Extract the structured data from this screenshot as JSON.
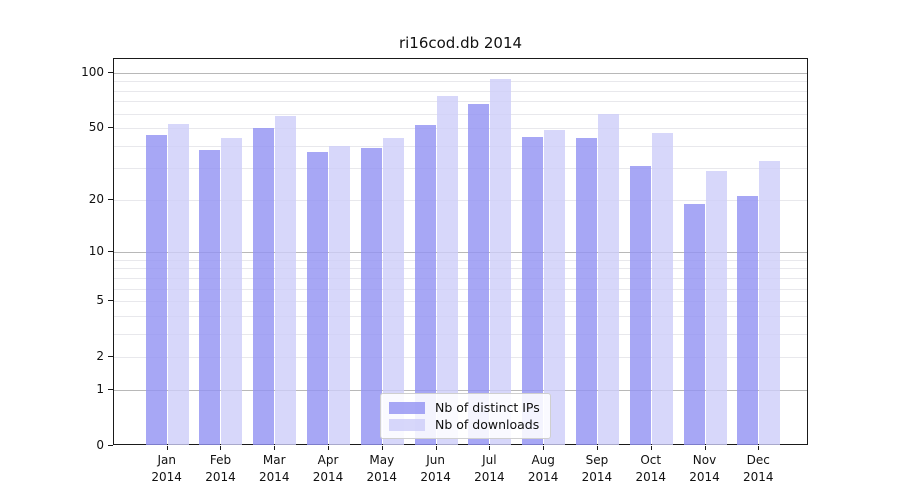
{
  "title": "ri16cod.db 2014",
  "chart_data": {
    "type": "bar",
    "title": "ri16cod.db 2014",
    "categories": [
      "Jan",
      "Feb",
      "Mar",
      "Apr",
      "May",
      "Jun",
      "Jul",
      "Aug",
      "Sep",
      "Oct",
      "Nov",
      "Dec"
    ],
    "x_year_label": "2014",
    "series": [
      {
        "name": "Nb of distinct IPs",
        "color": "rgba(148,148,243,0.82)",
        "values": [
          46,
          38,
          50,
          37,
          39,
          52,
          68,
          45,
          44,
          31,
          19,
          21
        ]
      },
      {
        "name": "Nb of downloads",
        "color": "rgba(205,205,249,0.80)",
        "values": [
          53,
          44,
          58,
          40,
          44,
          75,
          93,
          49,
          60,
          47,
          29,
          33
        ]
      }
    ],
    "yscale": "log1p",
    "yticks": [
      0,
      1,
      2,
      5,
      10,
      20,
      50,
      100
    ],
    "major_gridlines": [
      1,
      10,
      100
    ],
    "minor_gridlines": [
      2,
      3,
      4,
      5,
      6,
      7,
      8,
      9,
      20,
      30,
      40,
      50,
      60,
      70,
      80,
      90
    ],
    "ylim": [
      0,
      119
    ],
    "xlabel": "",
    "ylabel": "",
    "legend_position": "lower center",
    "grid": "horizontal",
    "colors": {
      "bar_ips": "rgba(148,148,243,0.82)",
      "bar_downloads": "rgba(205,205,249,0.80)",
      "grid_major": "#b8b8b8",
      "grid_minor": "#e8e8ec",
      "spine": "#1a1a1a",
      "text": "#111111",
      "background": "#ffffff"
    }
  }
}
